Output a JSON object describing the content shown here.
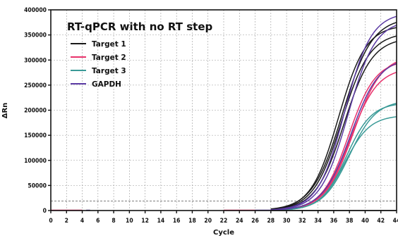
{
  "chart_data": {
    "type": "line",
    "title": "RT-qPCR with no RT step",
    "xlabel": "Cycle",
    "ylabel": "ΔRn",
    "xlim": [
      0,
      44
    ],
    "ylim": [
      0,
      400000
    ],
    "x_ticks": [
      "0",
      "2",
      "4",
      "6",
      "8",
      "10",
      "12",
      "14",
      "16",
      "18",
      "20",
      "22",
      "24",
      "26",
      "28",
      "30",
      "32",
      "34",
      "36",
      "38",
      "40",
      "42",
      "44"
    ],
    "y_ticks": [
      "0",
      "50000",
      "100000",
      "150000",
      "200000",
      "250000",
      "300000",
      "350000",
      "400000"
    ],
    "grid": true,
    "threshold": 19000,
    "legend_position": "top-left",
    "series_colors": {
      "Target 1": "#1a1a1a",
      "Target 2": "#e8326b",
      "Target 3": "#3a9a97",
      "GAPDH": "#5b3aa3"
    },
    "series": [
      {
        "name": "Target 1",
        "color": "#1a1a1a",
        "plateau": 370000,
        "midpoint": 36.6,
        "slope": 1.75
      },
      {
        "name": "Target 1",
        "color": "#1a1a1a",
        "plateau": 355000,
        "midpoint": 37.0,
        "slope": 1.8
      },
      {
        "name": "Target 1",
        "color": "#1a1a1a",
        "plateau": 345000,
        "midpoint": 37.3,
        "slope": 1.8
      },
      {
        "name": "Target 1",
        "color": "#1a1a1a",
        "plateau": 385000,
        "midpoint": 37.1,
        "slope": 1.9
      },
      {
        "name": "Target 2",
        "color": "#e8326b",
        "plateau": 300000,
        "midpoint": 37.9,
        "slope": 1.7
      },
      {
        "name": "Target 2",
        "color": "#e8326b",
        "plateau": 285000,
        "midpoint": 38.1,
        "slope": 1.75
      },
      {
        "name": "Target 2",
        "color": "#e8326b",
        "plateau": 310000,
        "midpoint": 38.5,
        "slope": 1.8
      },
      {
        "name": "Target 3",
        "color": "#3a9a97",
        "plateau": 215000,
        "midpoint": 37.6,
        "slope": 1.6
      },
      {
        "name": "Target 3",
        "color": "#3a9a97",
        "plateau": 190000,
        "midpoint": 37.4,
        "slope": 1.6
      },
      {
        "name": "Target 3",
        "color": "#3a9a97",
        "plateau": 220000,
        "midpoint": 38.0,
        "slope": 1.7
      },
      {
        "name": "GAPDH",
        "color": "#5b3aa3",
        "plateau": 395000,
        "midpoint": 37.4,
        "slope": 1.7
      },
      {
        "name": "GAPDH",
        "color": "#5b3aa3",
        "plateau": 380000,
        "midpoint": 37.8,
        "slope": 1.75
      },
      {
        "name": "GAPDH",
        "color": "#5b3aa3",
        "plateau": 305000,
        "midpoint": 38.2,
        "slope": 1.8
      }
    ],
    "legend": [
      {
        "label": "Target 1",
        "color": "#1a1a1a"
      },
      {
        "label": "Target 2",
        "color": "#e8326b"
      },
      {
        "label": "Target 3",
        "color": "#3a9a97"
      },
      {
        "label": "GAPDH",
        "color": "#5b3aa3"
      }
    ]
  }
}
